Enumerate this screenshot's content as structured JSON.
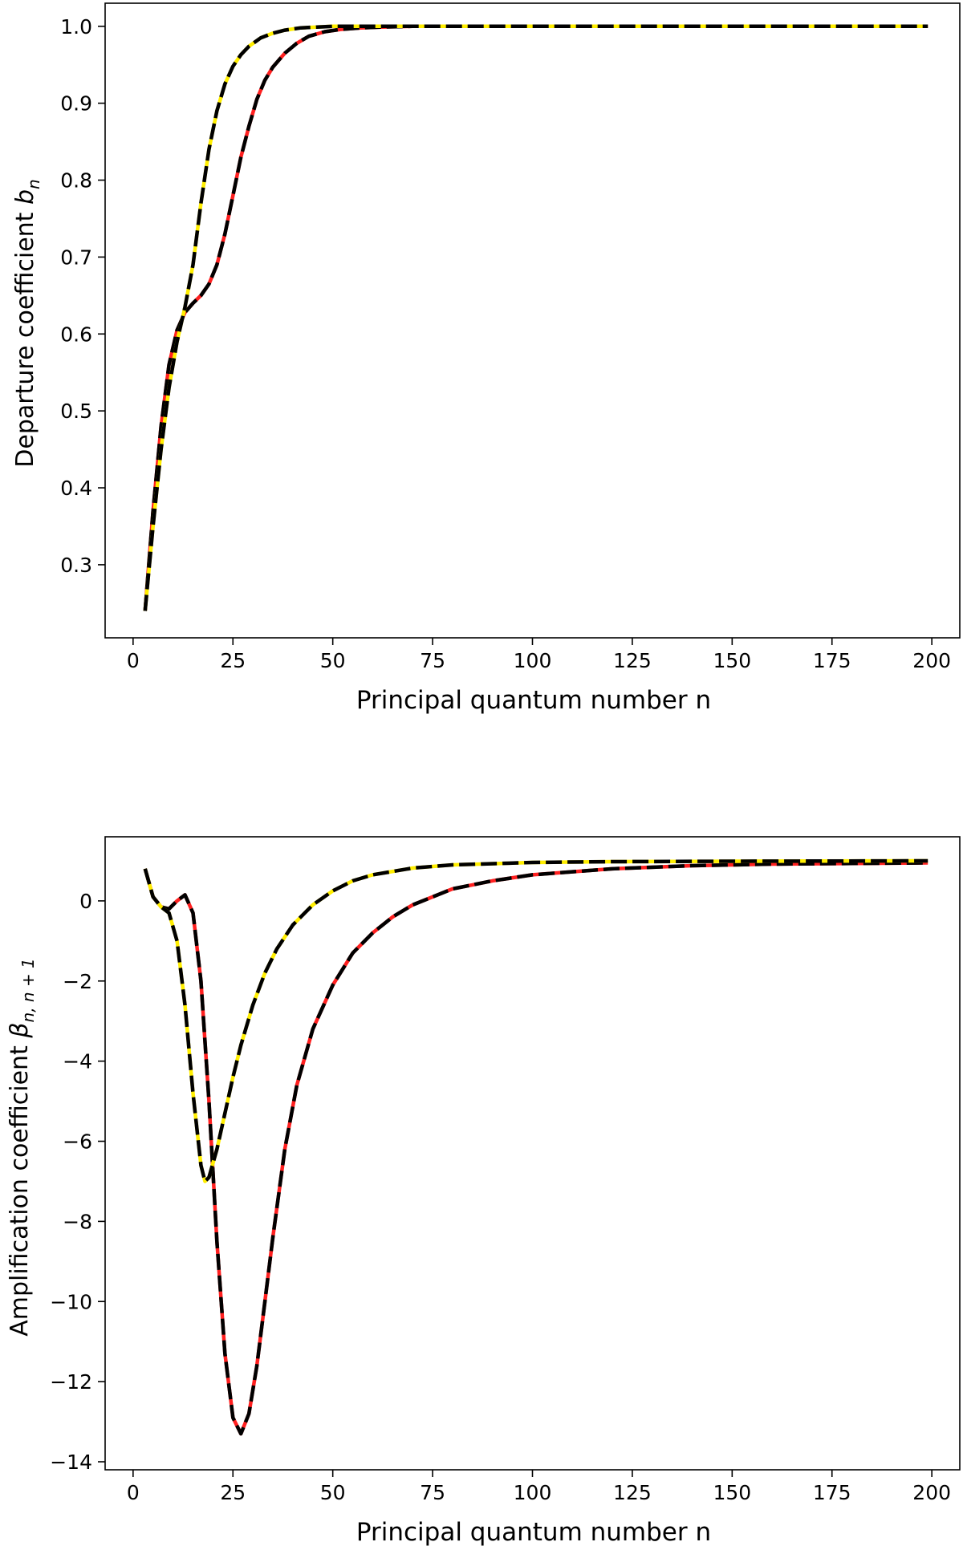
{
  "chart_data": [
    {
      "type": "line",
      "xlabel": "Principal quantum number n",
      "ylabel": {
        "main": "Departure coefficient ",
        "symbol": "b",
        "sub": "n"
      },
      "xlim": [
        -7,
        207
      ],
      "ylim": [
        0.205,
        1.03
      ],
      "xticks": [
        0,
        25,
        50,
        75,
        100,
        125,
        150,
        175,
        200
      ],
      "yticks": [
        0.3,
        0.4,
        0.5,
        0.6,
        0.7,
        0.8,
        0.9,
        1.0
      ],
      "ytick_labels": [
        "0.3",
        "0.4",
        "0.5",
        "0.6",
        "0.7",
        "0.8",
        "0.9",
        "1.0"
      ],
      "grid": false,
      "series": [
        {
          "color": "#ff2020",
          "overlay": "#000000",
          "x": [
            3,
            5,
            7,
            9,
            11,
            13,
            15,
            17,
            19,
            21,
            23,
            25,
            27,
            29,
            31,
            33,
            35,
            38,
            41,
            44,
            48,
            52,
            57,
            62,
            70,
            80,
            100,
            130,
            160,
            199
          ],
          "y": [
            0.24,
            0.37,
            0.48,
            0.56,
            0.605,
            0.628,
            0.64,
            0.65,
            0.665,
            0.69,
            0.73,
            0.78,
            0.83,
            0.87,
            0.905,
            0.93,
            0.947,
            0.965,
            0.978,
            0.987,
            0.993,
            0.996,
            0.998,
            0.999,
            1.0,
            1.0,
            1.0,
            1.0,
            1.0,
            1.0
          ]
        },
        {
          "color": "#ffee00",
          "overlay": "#000000",
          "x": [
            3,
            5,
            7,
            9,
            11,
            13,
            15,
            17,
            19,
            21,
            23,
            25,
            27,
            29,
            32,
            35,
            38,
            42,
            46,
            50,
            55,
            60,
            70,
            80,
            100,
            130,
            160,
            199
          ],
          "y": [
            0.24,
            0.35,
            0.45,
            0.53,
            0.59,
            0.635,
            0.69,
            0.77,
            0.84,
            0.89,
            0.925,
            0.948,
            0.963,
            0.974,
            0.985,
            0.991,
            0.995,
            0.998,
            0.999,
            1.0,
            1.0,
            1.0,
            1.0,
            1.0,
            1.0,
            1.0,
            1.0,
            1.0
          ]
        }
      ]
    },
    {
      "type": "line",
      "xlabel": "Principal quantum number n",
      "ylabel": {
        "main": "Amplification coefficient ",
        "symbol": "β",
        "sub": "n, n + 1"
      },
      "xlim": [
        -7,
        207
      ],
      "ylim": [
        -14.2,
        1.6
      ],
      "xticks": [
        0,
        25,
        50,
        75,
        100,
        125,
        150,
        175,
        200
      ],
      "yticks": [
        0,
        -2,
        -4,
        -6,
        -8,
        -10,
        -12,
        -14
      ],
      "ytick_labels": [
        "0",
        "−2",
        "−4",
        "−6",
        "−8",
        "−10",
        "−12",
        "−14"
      ],
      "grid": false,
      "series": [
        {
          "color": "#ff2020",
          "overlay": "#000000",
          "x": [
            3,
            5,
            7,
            9,
            11,
            13,
            15,
            17,
            19,
            21,
            23,
            25,
            27,
            29,
            31,
            33,
            35,
            38,
            41,
            45,
            50,
            55,
            60,
            65,
            70,
            80,
            90,
            100,
            120,
            140,
            160,
            199
          ],
          "y": [
            0.8,
            0.1,
            -0.15,
            -0.2,
            0.0,
            0.15,
            -0.3,
            -2.0,
            -5.0,
            -8.5,
            -11.3,
            -12.9,
            -13.3,
            -12.8,
            -11.6,
            -10.0,
            -8.4,
            -6.2,
            -4.6,
            -3.2,
            -2.1,
            -1.3,
            -0.8,
            -0.4,
            -0.1,
            0.3,
            0.5,
            0.65,
            0.8,
            0.88,
            0.92,
            0.95
          ]
        },
        {
          "color": "#ffee00",
          "overlay": "#000000",
          "x": [
            3,
            5,
            7,
            9,
            11,
            13,
            15,
            17,
            18,
            19,
            21,
            23,
            25,
            27,
            30,
            33,
            36,
            40,
            45,
            50,
            55,
            60,
            70,
            80,
            100,
            120,
            150,
            199
          ],
          "y": [
            0.8,
            0.1,
            -0.15,
            -0.3,
            -1.0,
            -2.6,
            -4.8,
            -6.6,
            -7.0,
            -6.9,
            -6.2,
            -5.3,
            -4.4,
            -3.6,
            -2.6,
            -1.8,
            -1.2,
            -0.6,
            -0.1,
            0.25,
            0.5,
            0.65,
            0.82,
            0.9,
            0.96,
            0.98,
            0.99,
            1.0
          ]
        }
      ]
    }
  ]
}
